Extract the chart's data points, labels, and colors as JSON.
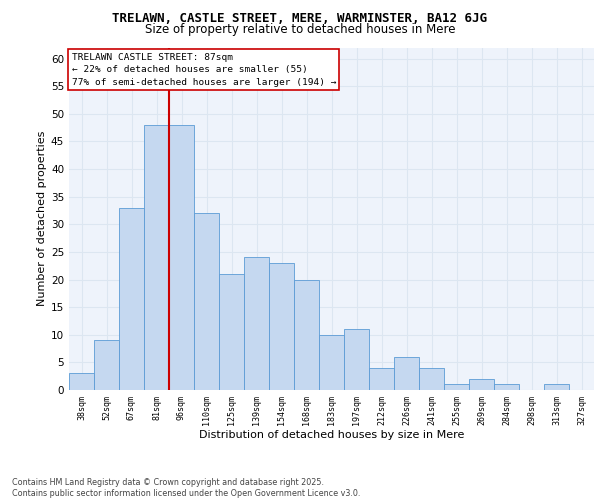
{
  "title_line1": "TRELAWN, CASTLE STREET, MERE, WARMINSTER, BA12 6JG",
  "title_line2": "Size of property relative to detached houses in Mere",
  "xlabel": "Distribution of detached houses by size in Mere",
  "ylabel": "Number of detached properties",
  "categories": [
    "38sqm",
    "52sqm",
    "67sqm",
    "81sqm",
    "96sqm",
    "110sqm",
    "125sqm",
    "139sqm",
    "154sqm",
    "168sqm",
    "183sqm",
    "197sqm",
    "212sqm",
    "226sqm",
    "241sqm",
    "255sqm",
    "269sqm",
    "284sqm",
    "298sqm",
    "313sqm",
    "327sqm"
  ],
  "values": [
    3,
    9,
    33,
    48,
    48,
    32,
    21,
    24,
    23,
    20,
    10,
    11,
    4,
    6,
    4,
    1,
    2,
    1,
    0,
    1,
    0
  ],
  "bar_color": "#c5d8f0",
  "bar_edge_color": "#5b9bd5",
  "grid_color": "#dce6f1",
  "background_color": "#eef3fb",
  "vline_x": 3.5,
  "vline_color": "#cc0000",
  "ylim": [
    0,
    62
  ],
  "yticks": [
    0,
    5,
    10,
    15,
    20,
    25,
    30,
    35,
    40,
    45,
    50,
    55,
    60
  ],
  "annotation_text": "TRELAWN CASTLE STREET: 87sqm\n← 22% of detached houses are smaller (55)\n77% of semi-detached houses are larger (194) →",
  "annotation_box_color": "#ffffff",
  "annotation_box_edge": "#cc0000",
  "footnote": "Contains HM Land Registry data © Crown copyright and database right 2025.\nContains public sector information licensed under the Open Government Licence v3.0."
}
